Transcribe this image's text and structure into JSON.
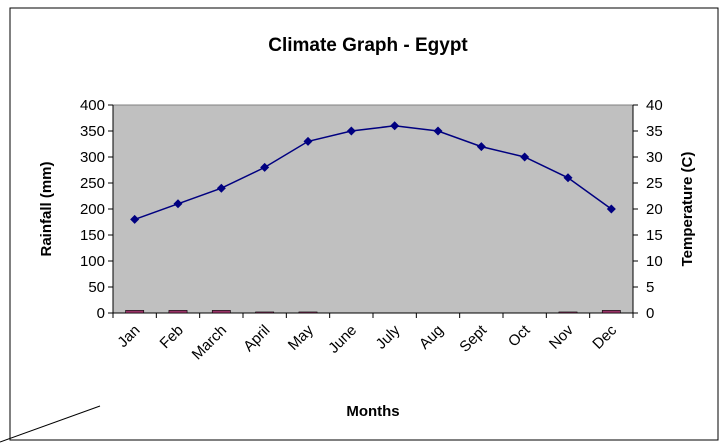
{
  "chart_data": {
    "type": "bar",
    "title": "Climate Graph - Egypt",
    "xlabel": "Months",
    "ylabel": "Rainfall (mm)",
    "y2label": "Temperature (C)",
    "categories": [
      "Jan",
      "Feb",
      "March",
      "April",
      "May",
      "June",
      "July",
      "Aug",
      "Sept",
      "Oct",
      "Nov",
      "Dec"
    ],
    "ylim": [
      0,
      400
    ],
    "y2lim": [
      0,
      40
    ],
    "yticks": [
      "0",
      "50",
      "100",
      "150",
      "200",
      "250",
      "300",
      "350",
      "400"
    ],
    "y2ticks": [
      "0",
      "5",
      "10",
      "15",
      "20",
      "25",
      "30",
      "35",
      "40"
    ],
    "plot_background": "#c0c0c0",
    "grid": false,
    "series": [
      {
        "type": "bar",
        "axis": "left",
        "color": "#993366",
        "values": [
          5,
          5,
          5,
          2,
          2,
          0,
          0,
          0,
          0,
          0,
          2,
          5
        ]
      },
      {
        "type": "line",
        "axis": "right",
        "color": "#000080",
        "marker": "diamond",
        "values": [
          18,
          21,
          24,
          28,
          33,
          35,
          36,
          35,
          32,
          30,
          26,
          20
        ]
      }
    ]
  }
}
